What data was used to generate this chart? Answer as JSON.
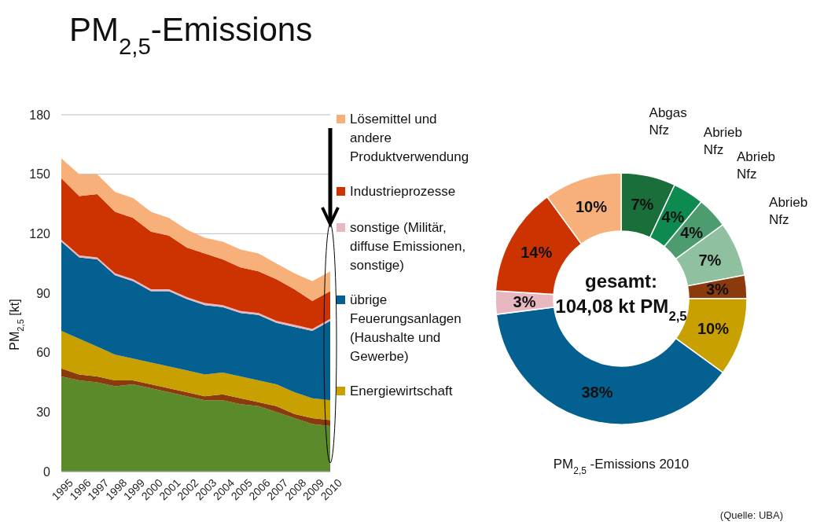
{
  "chart_data": [
    {
      "type": "area",
      "stacked": true,
      "title": "PM$_{2,5}$-Emissions",
      "ylabel": "PM$_{2,5}$ [kt]",
      "categories": [
        "1995",
        "1996",
        "1997",
        "1998",
        "1999",
        "2000",
        "2001",
        "2002",
        "2003",
        "2004",
        "2005",
        "2006",
        "2007",
        "2008",
        "2009",
        "2010"
      ],
      "ylim": [
        0,
        180
      ],
      "yticks": [
        0,
        30,
        60,
        90,
        120,
        150,
        180
      ],
      "grid": "y",
      "legend": "right",
      "series": [
        {
          "color": "#5a8a2a",
          "values": [
            48,
            46,
            45,
            43,
            44,
            42,
            40,
            38,
            36,
            36,
            34,
            33,
            30,
            27,
            24,
            23
          ]
        },
        {
          "color": "#8b3a0e",
          "values": [
            4,
            3,
            3,
            3,
            2,
            2,
            2,
            2,
            2,
            3,
            3,
            2,
            3,
            2,
            3,
            3
          ]
        },
        {
          "name": "Energiewirtschaft",
          "color": "#c8a000",
          "values": [
            19,
            18,
            15,
            13,
            11,
            11,
            11,
            11,
            11,
            11,
            11,
            11,
            11,
            11,
            10,
            10
          ]
        },
        {
          "name": "übrige Feuerungsanlagen (Haushalte und Gewerbe)",
          "color": "#046090",
          "values": [
            45,
            41,
            44,
            40,
            39,
            36,
            38,
            36,
            35,
            33,
            32,
            33,
            31,
            33,
            34,
            40
          ]
        },
        {
          "name": "sonstige (Militär, diffuse Emissionen, sonstige)",
          "color": "#e8b8c0",
          "values": [
            1,
            1,
            1,
            1,
            1,
            1,
            1,
            1,
            1,
            1,
            1,
            1,
            1,
            1,
            1,
            1
          ]
        },
        {
          "name": "Industrieprozesse",
          "color": "#cc3300",
          "values": [
            31,
            30,
            32,
            31,
            31,
            29,
            27,
            25,
            25,
            23,
            22,
            21,
            21,
            18,
            14,
            14
          ]
        },
        {
          "name": "Lösemittel und andere Produktverwendung",
          "color": "#f7b07a",
          "values": [
            10,
            11,
            10,
            10,
            10,
            10,
            9,
            9,
            8,
            9,
            9,
            9,
            8,
            8,
            10,
            10
          ]
        }
      ]
    },
    {
      "type": "donut",
      "title": "PM$_{2,5}$ -Emissions 2010",
      "value_labels": [
        "7%",
        "4%",
        "4%",
        "7%",
        "3%",
        "10%",
        "38%",
        "3%",
        "14%",
        "10%"
      ],
      "categories": [
        "Abgas Nfz",
        "Abrieb Nfz",
        "Abrieb Nfz",
        "Abrieb Nfz",
        null,
        null,
        null,
        null,
        null,
        null
      ],
      "values": [
        7,
        4,
        4,
        7,
        3,
        10,
        38,
        3,
        14,
        10
      ],
      "colors": [
        "#1a6e3a",
        "#0c8a50",
        "#4d9c70",
        "#8fc0a0",
        "#8b3a0e",
        "#c8a000",
        "#046090",
        "#e8b8c0",
        "#cc3300",
        "#f7b07a"
      ],
      "annotations": [
        "gesamt:",
        "104,08 kt PM$_{2,5}$",
        "(Quelle:  UBA)"
      ]
    }
  ]
}
